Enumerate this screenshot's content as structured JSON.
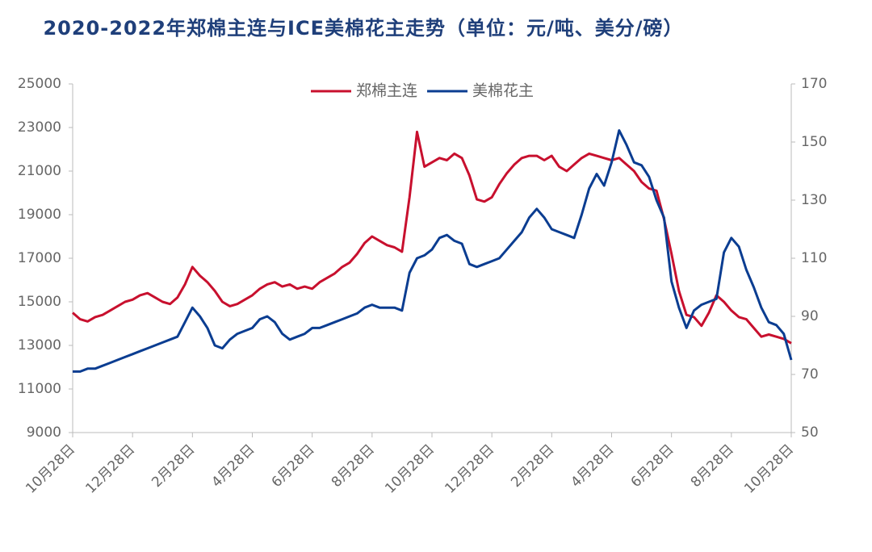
{
  "chart_data": {
    "type": "line",
    "title": "2020-2022年郑棉主连与ICE美棉花主走势（单位：元/吨、美分/磅）",
    "categories": [
      "10月28日",
      null,
      null,
      null,
      null,
      null,
      null,
      null,
      "12月28日",
      null,
      null,
      null,
      null,
      null,
      null,
      null,
      "2月28日",
      null,
      null,
      null,
      null,
      null,
      null,
      null,
      "4月28日",
      null,
      null,
      null,
      null,
      null,
      null,
      null,
      "6月28日",
      null,
      null,
      null,
      null,
      null,
      null,
      null,
      "8月28日",
      null,
      null,
      null,
      null,
      null,
      null,
      null,
      "10月28日",
      null,
      null,
      null,
      null,
      null,
      null,
      null,
      "12月28日",
      null,
      null,
      null,
      null,
      null,
      null,
      null,
      "2月28日",
      null,
      null,
      null,
      null,
      null,
      null,
      null,
      "4月28日",
      null,
      null,
      null,
      null,
      null,
      null,
      null,
      "6月28日",
      null,
      null,
      null,
      null,
      null,
      null,
      null,
      "8月28日",
      null,
      null,
      null,
      null,
      null,
      null,
      null,
      "10月28日"
    ],
    "series": [
      {
        "name": "郑棉主连",
        "color": "#c8102e",
        "axis": "y",
        "values": [
          14500,
          14200,
          14100,
          14300,
          14400,
          14600,
          14800,
          15000,
          15100,
          15300,
          15400,
          15200,
          15000,
          14900,
          15200,
          15800,
          16600,
          16200,
          15900,
          15500,
          15000,
          14800,
          14900,
          15100,
          15300,
          15600,
          15800,
          15900,
          15700,
          15800,
          15600,
          15700,
          15600,
          15900,
          16100,
          16300,
          16600,
          16800,
          17200,
          17700,
          18000,
          17800,
          17600,
          17500,
          17300,
          19800,
          22800,
          21200,
          21400,
          21600,
          21500,
          21800,
          21600,
          20800,
          19700,
          19600,
          19800,
          20400,
          20900,
          21300,
          21600,
          21700,
          21700,
          21500,
          21700,
          21200,
          21000,
          21300,
          21600,
          21800,
          21700,
          21600,
          21500,
          21600,
          21300,
          21000,
          20500,
          20200,
          20100,
          18800,
          17200,
          15500,
          14400,
          14300,
          13900,
          14500,
          15300,
          15000,
          14600,
          14300,
          14200,
          13800,
          13400,
          13500,
          13400,
          13300,
          13100
        ]
      },
      {
        "name": "美棉花主",
        "color": "#0b3d91",
        "axis": "y2",
        "values": [
          71,
          71,
          72,
          72,
          73,
          74,
          75,
          76,
          77,
          78,
          79,
          80,
          81,
          82,
          83,
          88,
          93,
          90,
          86,
          80,
          79,
          82,
          84,
          85,
          86,
          89,
          90,
          88,
          84,
          82,
          83,
          84,
          86,
          86,
          87,
          88,
          89,
          90,
          91,
          93,
          94,
          93,
          93,
          93,
          92,
          105,
          110,
          111,
          113,
          117,
          118,
          116,
          115,
          108,
          107,
          108,
          109,
          110,
          113,
          116,
          119,
          124,
          127,
          124,
          120,
          119,
          118,
          117,
          125,
          134,
          139,
          135,
          143,
          154,
          149,
          143,
          142,
          138,
          130,
          124,
          102,
          93,
          86,
          92,
          94,
          95,
          96,
          112,
          117,
          114,
          106,
          100,
          93,
          88,
          87,
          84,
          75
        ]
      }
    ],
    "ylim": [
      9000,
      25000
    ],
    "yticks": [
      9000,
      11000,
      13000,
      15000,
      17000,
      19000,
      21000,
      23000,
      25000
    ],
    "y2lim": [
      50,
      170
    ],
    "y2ticks": [
      50,
      70,
      90,
      110,
      130,
      150,
      170
    ],
    "legend": "top"
  }
}
